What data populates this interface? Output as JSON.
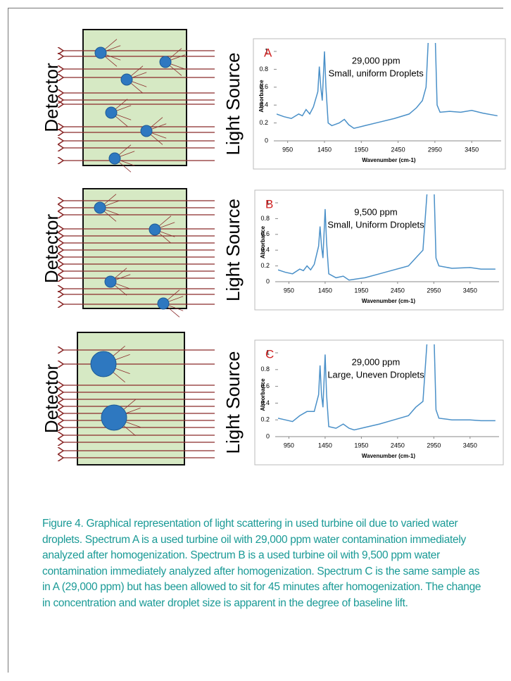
{
  "chart_data": [
    {
      "type": "line",
      "label": "A",
      "annotation": [
        "29,000 ppm",
        "Small, uniform Droplets"
      ],
      "y_label": "Absorbance",
      "x_label": "Wavenumber (cm-1)",
      "color": "#4a90c8",
      "xlim": [
        800,
        3850
      ],
      "ylim": [
        0,
        1
      ],
      "xticks": [
        950,
        1450,
        1950,
        2450,
        2950,
        3450
      ],
      "yticks": [
        0,
        0.2,
        0.4,
        0.6,
        0.8,
        1
      ],
      "x": [
        800,
        900,
        1000,
        1100,
        1150,
        1200,
        1250,
        1300,
        1360,
        1380,
        1400,
        1420,
        1450,
        1470,
        1500,
        1550,
        1650,
        1720,
        1780,
        1850,
        2000,
        2200,
        2400,
        2600,
        2700,
        2780,
        2830,
        2870,
        2950,
        2980,
        3020,
        3150,
        3300,
        3450,
        3600,
        3800
      ],
      "values": [
        0.3,
        0.27,
        0.25,
        0.3,
        0.28,
        0.35,
        0.3,
        0.38,
        0.55,
        0.83,
        0.6,
        0.45,
        1.0,
        0.6,
        0.2,
        0.17,
        0.2,
        0.24,
        0.18,
        0.14,
        0.17,
        0.21,
        0.25,
        0.3,
        0.37,
        0.45,
        0.6,
        1.3,
        1.3,
        0.4,
        0.32,
        0.33,
        0.32,
        0.34,
        0.31,
        0.28
      ]
    },
    {
      "type": "line",
      "label": "B",
      "annotation": [
        "9,500 ppm",
        "Small, Uniform Droplets"
      ],
      "y_label": "Absorbance",
      "x_label": "Wavenumber (cm-1)",
      "color": "#4a90c8",
      "xlim": [
        800,
        3850
      ],
      "ylim": [
        0,
        1
      ],
      "xticks": [
        950,
        1450,
        1950,
        2450,
        2950,
        3450
      ],
      "yticks": [
        0,
        0.2,
        0.4,
        0.6,
        0.8,
        1
      ],
      "x": [
        800,
        900,
        1000,
        1100,
        1150,
        1200,
        1250,
        1300,
        1360,
        1380,
        1400,
        1420,
        1450,
        1470,
        1500,
        1600,
        1700,
        1780,
        1850,
        2000,
        2200,
        2400,
        2600,
        2700,
        2800,
        2870,
        2950,
        2980,
        3020,
        3200,
        3450,
        3600,
        3800
      ],
      "values": [
        0.15,
        0.12,
        0.1,
        0.16,
        0.14,
        0.2,
        0.15,
        0.22,
        0.45,
        0.7,
        0.45,
        0.3,
        0.92,
        0.5,
        0.1,
        0.05,
        0.07,
        0.02,
        0.03,
        0.05,
        0.1,
        0.15,
        0.2,
        0.3,
        0.4,
        1.3,
        1.3,
        0.3,
        0.2,
        0.17,
        0.18,
        0.16,
        0.16
      ]
    },
    {
      "type": "line",
      "label": "C",
      "annotation": [
        "29,000 ppm",
        "Large, Uneven Droplets"
      ],
      "y_label": "Absorbance",
      "x_label": "Wavenumber (cm-1)",
      "color": "#4a90c8",
      "xlim": [
        800,
        3850
      ],
      "ylim": [
        0,
        1
      ],
      "xticks": [
        950,
        1450,
        1950,
        2450,
        2950,
        3450
      ],
      "yticks": [
        0,
        0.2,
        0.4,
        0.6,
        0.8,
        1
      ],
      "x": [
        800,
        900,
        1000,
        1100,
        1200,
        1300,
        1360,
        1380,
        1400,
        1420,
        1450,
        1470,
        1500,
        1600,
        1700,
        1780,
        1850,
        2000,
        2200,
        2400,
        2600,
        2700,
        2800,
        2870,
        2950,
        2980,
        3020,
        3200,
        3450,
        3600,
        3800
      ],
      "values": [
        0.22,
        0.2,
        0.18,
        0.25,
        0.3,
        0.3,
        0.5,
        0.85,
        0.5,
        0.35,
        0.98,
        0.5,
        0.12,
        0.1,
        0.15,
        0.1,
        0.08,
        0.11,
        0.15,
        0.2,
        0.25,
        0.35,
        0.42,
        1.3,
        1.3,
        0.32,
        0.22,
        0.2,
        0.2,
        0.19,
        0.19
      ]
    }
  ],
  "diagrams": [
    {
      "left": "Detector",
      "right": "Light Source"
    },
    {
      "left": "Detector",
      "right": "Light Source"
    },
    {
      "left": "Detector",
      "right": "Light Source"
    }
  ],
  "caption": "Figure 4. Graphical representation of light scattering in used turbine oil due to varied water droplets. Spectrum  A is a used turbine oil with 29,000 ppm water contamination immediately analyzed after homogenization. Spectrum B is a used turbine oil with 9,500 ppm water contamination immediately analyzed after homogenization. Spectrum C is the same sample as in A (29,000 ppm) but has been allowed to sit for 45 minutes after homogenization. The change in concentration and water droplet size is apparent in the degree of baseline lift."
}
